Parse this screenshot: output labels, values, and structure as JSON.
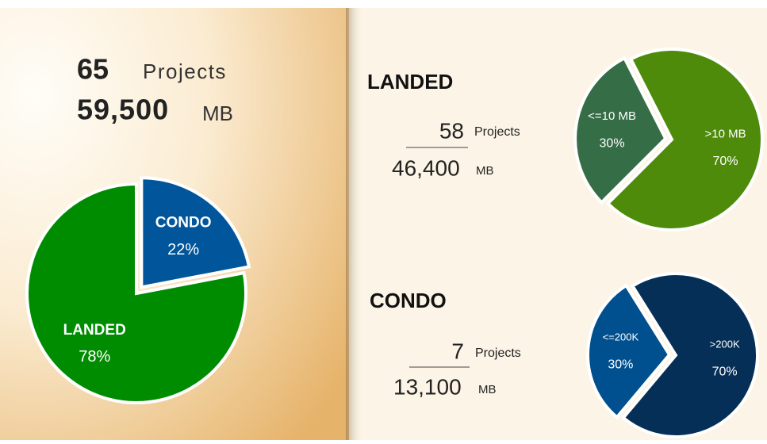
{
  "summary": {
    "projects": 65,
    "projects_label": "Projects",
    "size": "59,500",
    "unit": "MB"
  },
  "groups": [
    {
      "projects": 58,
      "projects_label": "Projects",
      "size": "46,400",
      "unit": "MB"
    },
    {
      "projects": 7,
      "projects_label": "Projects",
      "size": "13,100",
      "unit": "MB"
    }
  ],
  "chart_data": [
    {
      "type": "pie",
      "categories": [
        "CONDO",
        "LANDED"
      ],
      "values": [
        22,
        78
      ],
      "value_labels": [
        "22%",
        "78%"
      ],
      "colors": [
        "#00559b",
        "#008c00"
      ]
    },
    {
      "type": "pie",
      "title": "LANDED",
      "categories": [
        "<=10 MB",
        ">10 MB"
      ],
      "values": [
        30,
        70
      ],
      "value_labels": [
        "30%",
        "70%"
      ],
      "colors": [
        "#356d46",
        "#4e8b0a"
      ]
    },
    {
      "type": "pie",
      "title": "CONDO",
      "categories": [
        "<=200K",
        ">200K"
      ],
      "values": [
        30,
        70
      ],
      "value_labels": [
        "30%",
        "70%"
      ],
      "colors": [
        "#00508f",
        "#062f57"
      ]
    }
  ]
}
